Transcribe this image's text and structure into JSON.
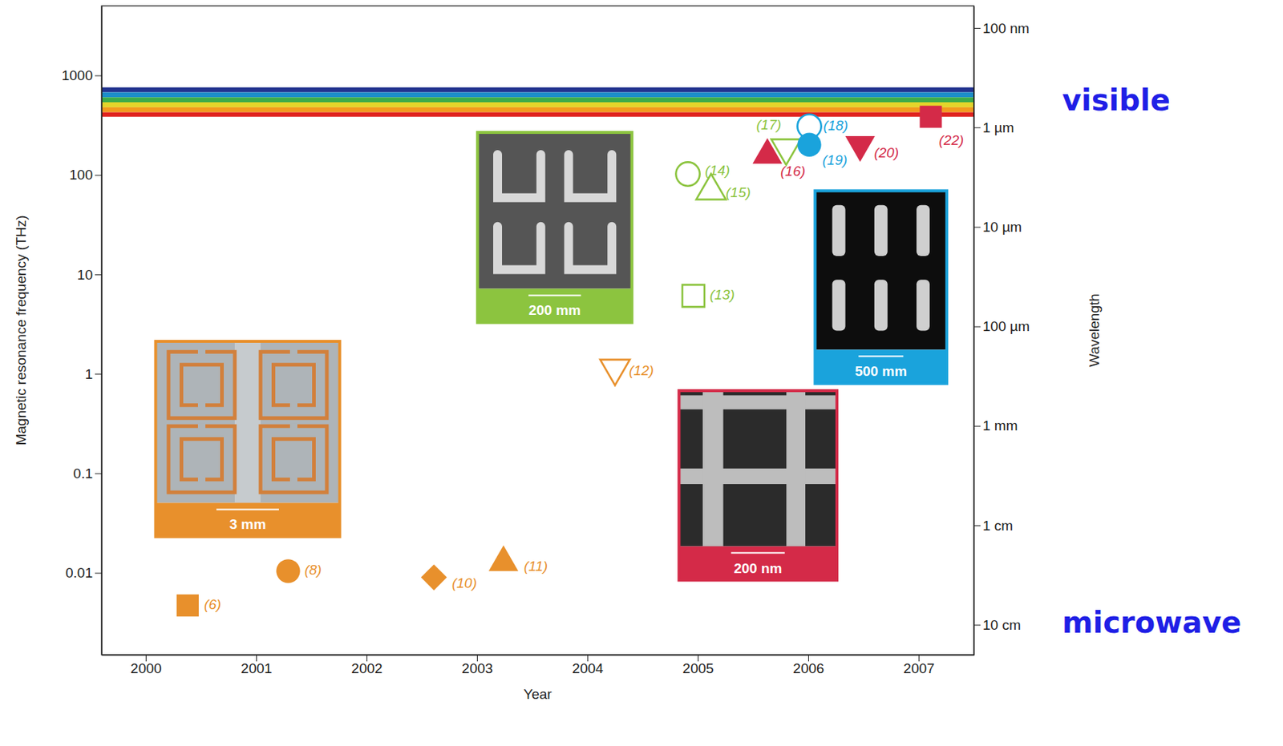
{
  "chart_data": {
    "type": "scatter",
    "log": "y",
    "x_label": "Year",
    "y_label": "Magnetic resonance frequency (THz)",
    "y2_label": "Wavelength",
    "xlim": [
      1999.6,
      2007.5
    ],
    "xticks": [
      2000,
      2001,
      2002,
      2003,
      2004,
      2005,
      2006,
      2007
    ],
    "ylim": [
      0.0015,
      5000
    ],
    "yticks": [
      0.01,
      0.1,
      1,
      10,
      100,
      1000
    ],
    "y2lim": [
      0.2,
      6e-08
    ],
    "y2ticks": [
      {
        "value": 1e-07,
        "label": "100 nm"
      },
      {
        "value": 1e-06,
        "label": "1 µm"
      },
      {
        "value": 1e-05,
        "label": "10 µm"
      },
      {
        "value": 0.0001,
        "label": "100 µm"
      },
      {
        "value": 0.001,
        "label": "1 mm"
      },
      {
        "value": 0.01,
        "label": "1 cm"
      },
      {
        "value": 0.1,
        "label": "10 cm"
      }
    ],
    "series": [
      {
        "name": "(6)",
        "color": "#e8902c",
        "marker": "square",
        "x": [
          2000.38
        ],
        "values": [
          0.0047
        ]
      },
      {
        "name": "(8)",
        "color": "#e8902c",
        "marker": "circle",
        "x": [
          2001.29
        ],
        "values": [
          0.0104
        ]
      },
      {
        "name": "(10)",
        "color": "#e8902c",
        "marker": "diamond",
        "x": [
          2002.61
        ],
        "values": [
          0.009
        ]
      },
      {
        "name": "(11)",
        "color": "#e8902c",
        "marker": "triangle",
        "x": [
          2003.24
        ],
        "values": [
          0.0127
        ]
      },
      {
        "name": "(12)",
        "color": "#e8902c",
        "marker": "triangle-down-open",
        "x": [
          2004.25
        ],
        "values": [
          1.14
        ]
      },
      {
        "name": "(13)",
        "color": "#8cc43f",
        "marker": "square-open",
        "x": [
          2004.96
        ],
        "values": [
          6.08
        ]
      },
      {
        "name": "(14)",
        "color": "#8cc43f",
        "marker": "circle-open",
        "x": [
          2004.91
        ],
        "values": [
          102
        ]
      },
      {
        "name": "(15)",
        "color": "#8cc43f",
        "marker": "triangle-open",
        "x": [
          2005.12
        ],
        "values": [
          69
        ]
      },
      {
        "name": "(16)",
        "color": "#d42a48",
        "marker": "triangle",
        "x": [
          2005.63
        ],
        "values": [
          158
        ]
      },
      {
        "name": "(17)",
        "color": "#8cc43f",
        "marker": "triangle-down-open",
        "x": [
          2005.8
        ],
        "values": [
          187
        ]
      },
      {
        "name": "(18)",
        "color": "#1aa3dc",
        "marker": "circle-open",
        "x": [
          2006.01
        ],
        "values": [
          308
        ]
      },
      {
        "name": "(19)",
        "color": "#1aa3dc",
        "marker": "circle",
        "x": [
          2006.01
        ],
        "values": [
          201
        ]
      },
      {
        "name": "(20)",
        "color": "#d42a48",
        "marker": "triangle-down",
        "x": [
          2006.47
        ],
        "values": [
          201
        ]
      },
      {
        "name": "(22)",
        "color": "#d42a48",
        "marker": "square",
        "x": [
          2007.11
        ],
        "values": [
          384
        ]
      }
    ],
    "visible_bands": [
      {
        "from": 676,
        "to": 759,
        "color": "#23338f"
      },
      {
        "from": 602,
        "to": 676,
        "color": "#1c8ec9"
      },
      {
        "from": 537,
        "to": 602,
        "color": "#3bab4a"
      },
      {
        "from": 478,
        "to": 537,
        "color": "#e3d52a"
      },
      {
        "from": 426,
        "to": 478,
        "color": "#f29a1e"
      },
      {
        "from": 384,
        "to": 426,
        "color": "#e0231f"
      }
    ],
    "insets": [
      {
        "scale_bar": "3 mm",
        "color": "#e8902c"
      },
      {
        "scale_bar": "200 mm",
        "color": "#8cc43f"
      },
      {
        "scale_bar": "500 mm",
        "color": "#1aa3dc"
      },
      {
        "scale_bar": "200 nm",
        "color": "#d42a48"
      }
    ],
    "annotations": [
      "visible",
      "microwave"
    ]
  }
}
